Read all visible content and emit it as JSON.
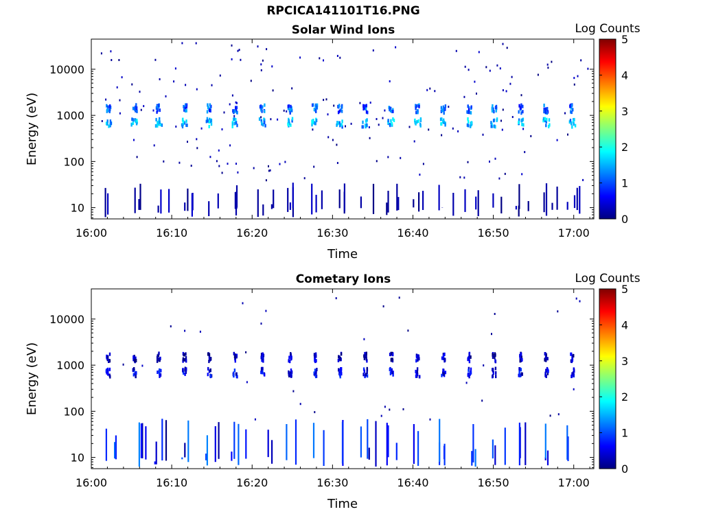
{
  "figure_title": "RPCICA141101T16.PNG",
  "colorscale": {
    "stops": [
      "#00007f",
      "#0000ff",
      "#007fff",
      "#00ffff",
      "#7fff7f",
      "#ffff00",
      "#ff7f00",
      "#ff0000",
      "#7f0000"
    ]
  },
  "chart_data": [
    {
      "type": "heatmap",
      "title": "Solar Wind Ions",
      "xlabel": "Time",
      "ylabel": "Energy (eV)",
      "xticks": [
        "16:00",
        "16:10",
        "16:20",
        "16:30",
        "16:40",
        "16:50",
        "17:00"
      ],
      "xlim_minutes": [
        0,
        62.5
      ],
      "yscale": "log",
      "ylim": [
        5.7,
        45000
      ],
      "yticks": [
        {
          "value": 10,
          "label": "10"
        },
        {
          "value": 100,
          "label": "100"
        },
        {
          "value": 1000,
          "label": "1000"
        },
        {
          "value": 10000,
          "label": "10000"
        }
      ],
      "colorbar": {
        "label": "Log Counts",
        "range": [
          0,
          5
        ],
        "ticks": [
          "0",
          "1",
          "2",
          "3",
          "4",
          "5"
        ]
      },
      "periodic_bursts": {
        "times_min": [
          2,
          5.3,
          8.3,
          11.5,
          14.6,
          17.8,
          21.2,
          24.6,
          27.7,
          30.8,
          34,
          37.2,
          40.5,
          43.7,
          46.9,
          50,
          53.3,
          56.5,
          59.7
        ],
        "energy_bands_eV": [
          {
            "center": 1500,
            "width_min": 0.6,
            "log_level": 1.0
          },
          {
            "center": 750,
            "width_min": 0.8,
            "log_level": 1.4
          }
        ]
      },
      "low_energy_bands_eV": [
        [
          10,
          35
        ]
      ]
    },
    {
      "type": "heatmap",
      "title": "Cometary Ions",
      "xlabel": "Time",
      "ylabel": "Energy (eV)",
      "xticks": [
        "16:00",
        "16:10",
        "16:20",
        "16:30",
        "16:40",
        "16:50",
        "17:00"
      ],
      "xlim_minutes": [
        0,
        62.5
      ],
      "yscale": "log",
      "ylim": [
        5.7,
        45000
      ],
      "yticks": [
        {
          "value": 10,
          "label": "10"
        },
        {
          "value": 100,
          "label": "100"
        },
        {
          "value": 1000,
          "label": "1000"
        },
        {
          "value": 10000,
          "label": "10000"
        }
      ],
      "colorbar": {
        "label": "Log Counts",
        "range": [
          0,
          5
        ],
        "ticks": [
          "0",
          "1",
          "2",
          "3",
          "4",
          "5"
        ]
      },
      "periodic_bursts": {
        "times_min": [
          2,
          5.3,
          8.3,
          11.5,
          14.6,
          17.8,
          21.2,
          24.6,
          27.7,
          30.8,
          34,
          37.2,
          40.5,
          43.7,
          46.9,
          50,
          53.3,
          56.5,
          59.7
        ],
        "energy_bands_eV": [
          {
            "center": 1600,
            "width_min": 0.4,
            "log_level": 0.2
          },
          {
            "center": 750,
            "width_min": 0.5,
            "log_level": 0.4
          }
        ]
      },
      "low_energy_bands_eV": [
        [
          8,
          70
        ]
      ]
    }
  ]
}
